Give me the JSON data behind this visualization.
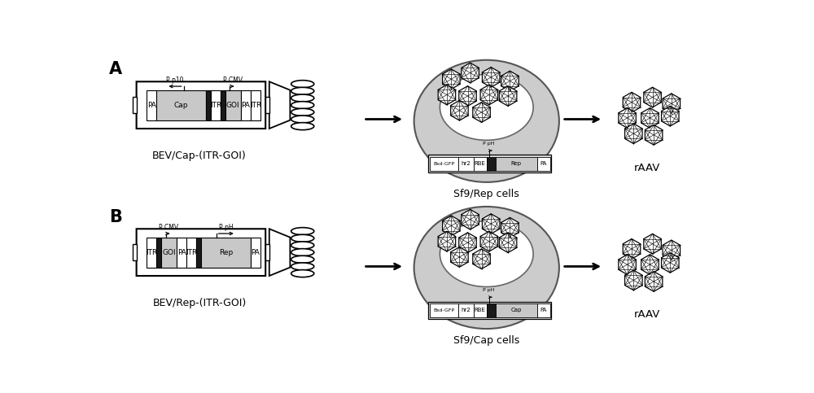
{
  "panel_A_label": "A",
  "panel_B_label": "B",
  "bev_cap_label": "BEV/Cap-(ITR-GOI)",
  "bev_rep_label": "BEV/Rep-(ITR-GOI)",
  "sf9_rep_label": "Sf9/Rep cells",
  "sf9_cap_label": "Sf9/Cap cells",
  "raav_label": "rAAV",
  "bg_color": "#ffffff"
}
